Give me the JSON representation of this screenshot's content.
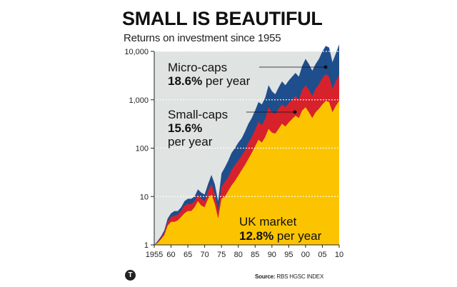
{
  "header": {
    "title": "SMALL IS BEAUTIFUL",
    "subtitle": "Returns on investment since 1955"
  },
  "footer": {
    "source_label": "Source:",
    "source_text": "RBS HGSC INDEX",
    "logo_glyph": "T"
  },
  "colors": {
    "plot_bg": "#dfe3e2",
    "micro": "#1f4e8c",
    "small": "#d8222b",
    "uk": "#fcc400",
    "grid": "#ffffff"
  },
  "chart_data": {
    "type": "area",
    "title": "SMALL IS BEAUTIFUL",
    "subtitle": "Returns on investment since 1955",
    "yscale": "log",
    "ylim": [
      1,
      10000
    ],
    "xlim": [
      1955,
      2010
    ],
    "yticks": [
      1,
      10,
      100,
      1000,
      10000
    ],
    "ytick_labels": [
      "1",
      "10",
      "100",
      "1,000",
      "10,000"
    ],
    "xticks": [
      1955,
      1960,
      1965,
      1970,
      1975,
      1980,
      1985,
      1990,
      1995,
      2000,
      2005,
      2010
    ],
    "xtick_labels": [
      "1955",
      "60",
      "65",
      "70",
      "75",
      "80",
      "85",
      "90",
      "95",
      "00",
      "05",
      "10"
    ],
    "x": [
      1955,
      1956,
      1957,
      1958,
      1959,
      1960,
      1961,
      1962,
      1963,
      1964,
      1965,
      1966,
      1967,
      1968,
      1969,
      1970,
      1971,
      1972,
      1973,
      1974,
      1975,
      1976,
      1977,
      1978,
      1979,
      1980,
      1981,
      1982,
      1983,
      1984,
      1985,
      1986,
      1987,
      1988,
      1989,
      1990,
      1991,
      1992,
      1993,
      1994,
      1995,
      1996,
      1997,
      1998,
      1999,
      2000,
      2001,
      2002,
      2003,
      2004,
      2005,
      2006,
      2007,
      2008,
      2009,
      2010
    ],
    "series": [
      {
        "name": "Micro-caps",
        "label": "Micro-caps",
        "rate": "18.6%",
        "rate_suffix": "per year",
        "values": [
          1,
          1.2,
          1.5,
          2,
          3.5,
          4.5,
          5,
          5,
          6,
          8,
          9,
          9,
          10,
          14,
          12,
          11,
          18,
          28,
          18,
          8,
          30,
          40,
          55,
          80,
          100,
          130,
          160,
          220,
          320,
          420,
          600,
          900,
          800,
          1100,
          2000,
          1500,
          1300,
          1800,
          2400,
          2000,
          2500,
          3000,
          3600,
          3000,
          5000,
          7000,
          5500,
          4000,
          5500,
          7000,
          10000,
          13000,
          12000,
          6000,
          9000,
          14000
        ]
      },
      {
        "name": "Small-caps",
        "label": "Small-caps",
        "rate": "15.6%",
        "rate_suffix": "per year",
        "values": [
          1,
          1.15,
          1.4,
          1.8,
          3,
          3.8,
          4,
          4.2,
          5,
          6.5,
          7,
          7,
          8,
          11,
          9,
          8,
          13,
          18,
          11,
          5,
          16,
          20,
          25,
          35,
          45,
          55,
          70,
          90,
          130,
          170,
          240,
          350,
          300,
          400,
          700,
          550,
          500,
          650,
          800,
          700,
          850,
          1000,
          1200,
          1000,
          1600,
          2000,
          1600,
          1200,
          1700,
          2100,
          2800,
          3400,
          3000,
          1700,
          2400,
          3200
        ]
      },
      {
        "name": "UK market",
        "label": "UK market",
        "rate": "12.8%",
        "rate_suffix": "per year",
        "values": [
          1,
          1.1,
          1.3,
          1.6,
          2.5,
          3,
          3,
          3.2,
          3.8,
          4.5,
          5,
          5,
          6,
          8,
          6.5,
          6,
          9,
          11,
          7,
          3.5,
          9,
          10,
          13,
          17,
          21,
          27,
          35,
          45,
          60,
          80,
          110,
          150,
          130,
          170,
          250,
          210,
          200,
          250,
          320,
          280,
          340,
          400,
          470,
          420,
          600,
          700,
          550,
          420,
          550,
          650,
          800,
          950,
          900,
          550,
          750,
          950
        ]
      }
    ]
  }
}
